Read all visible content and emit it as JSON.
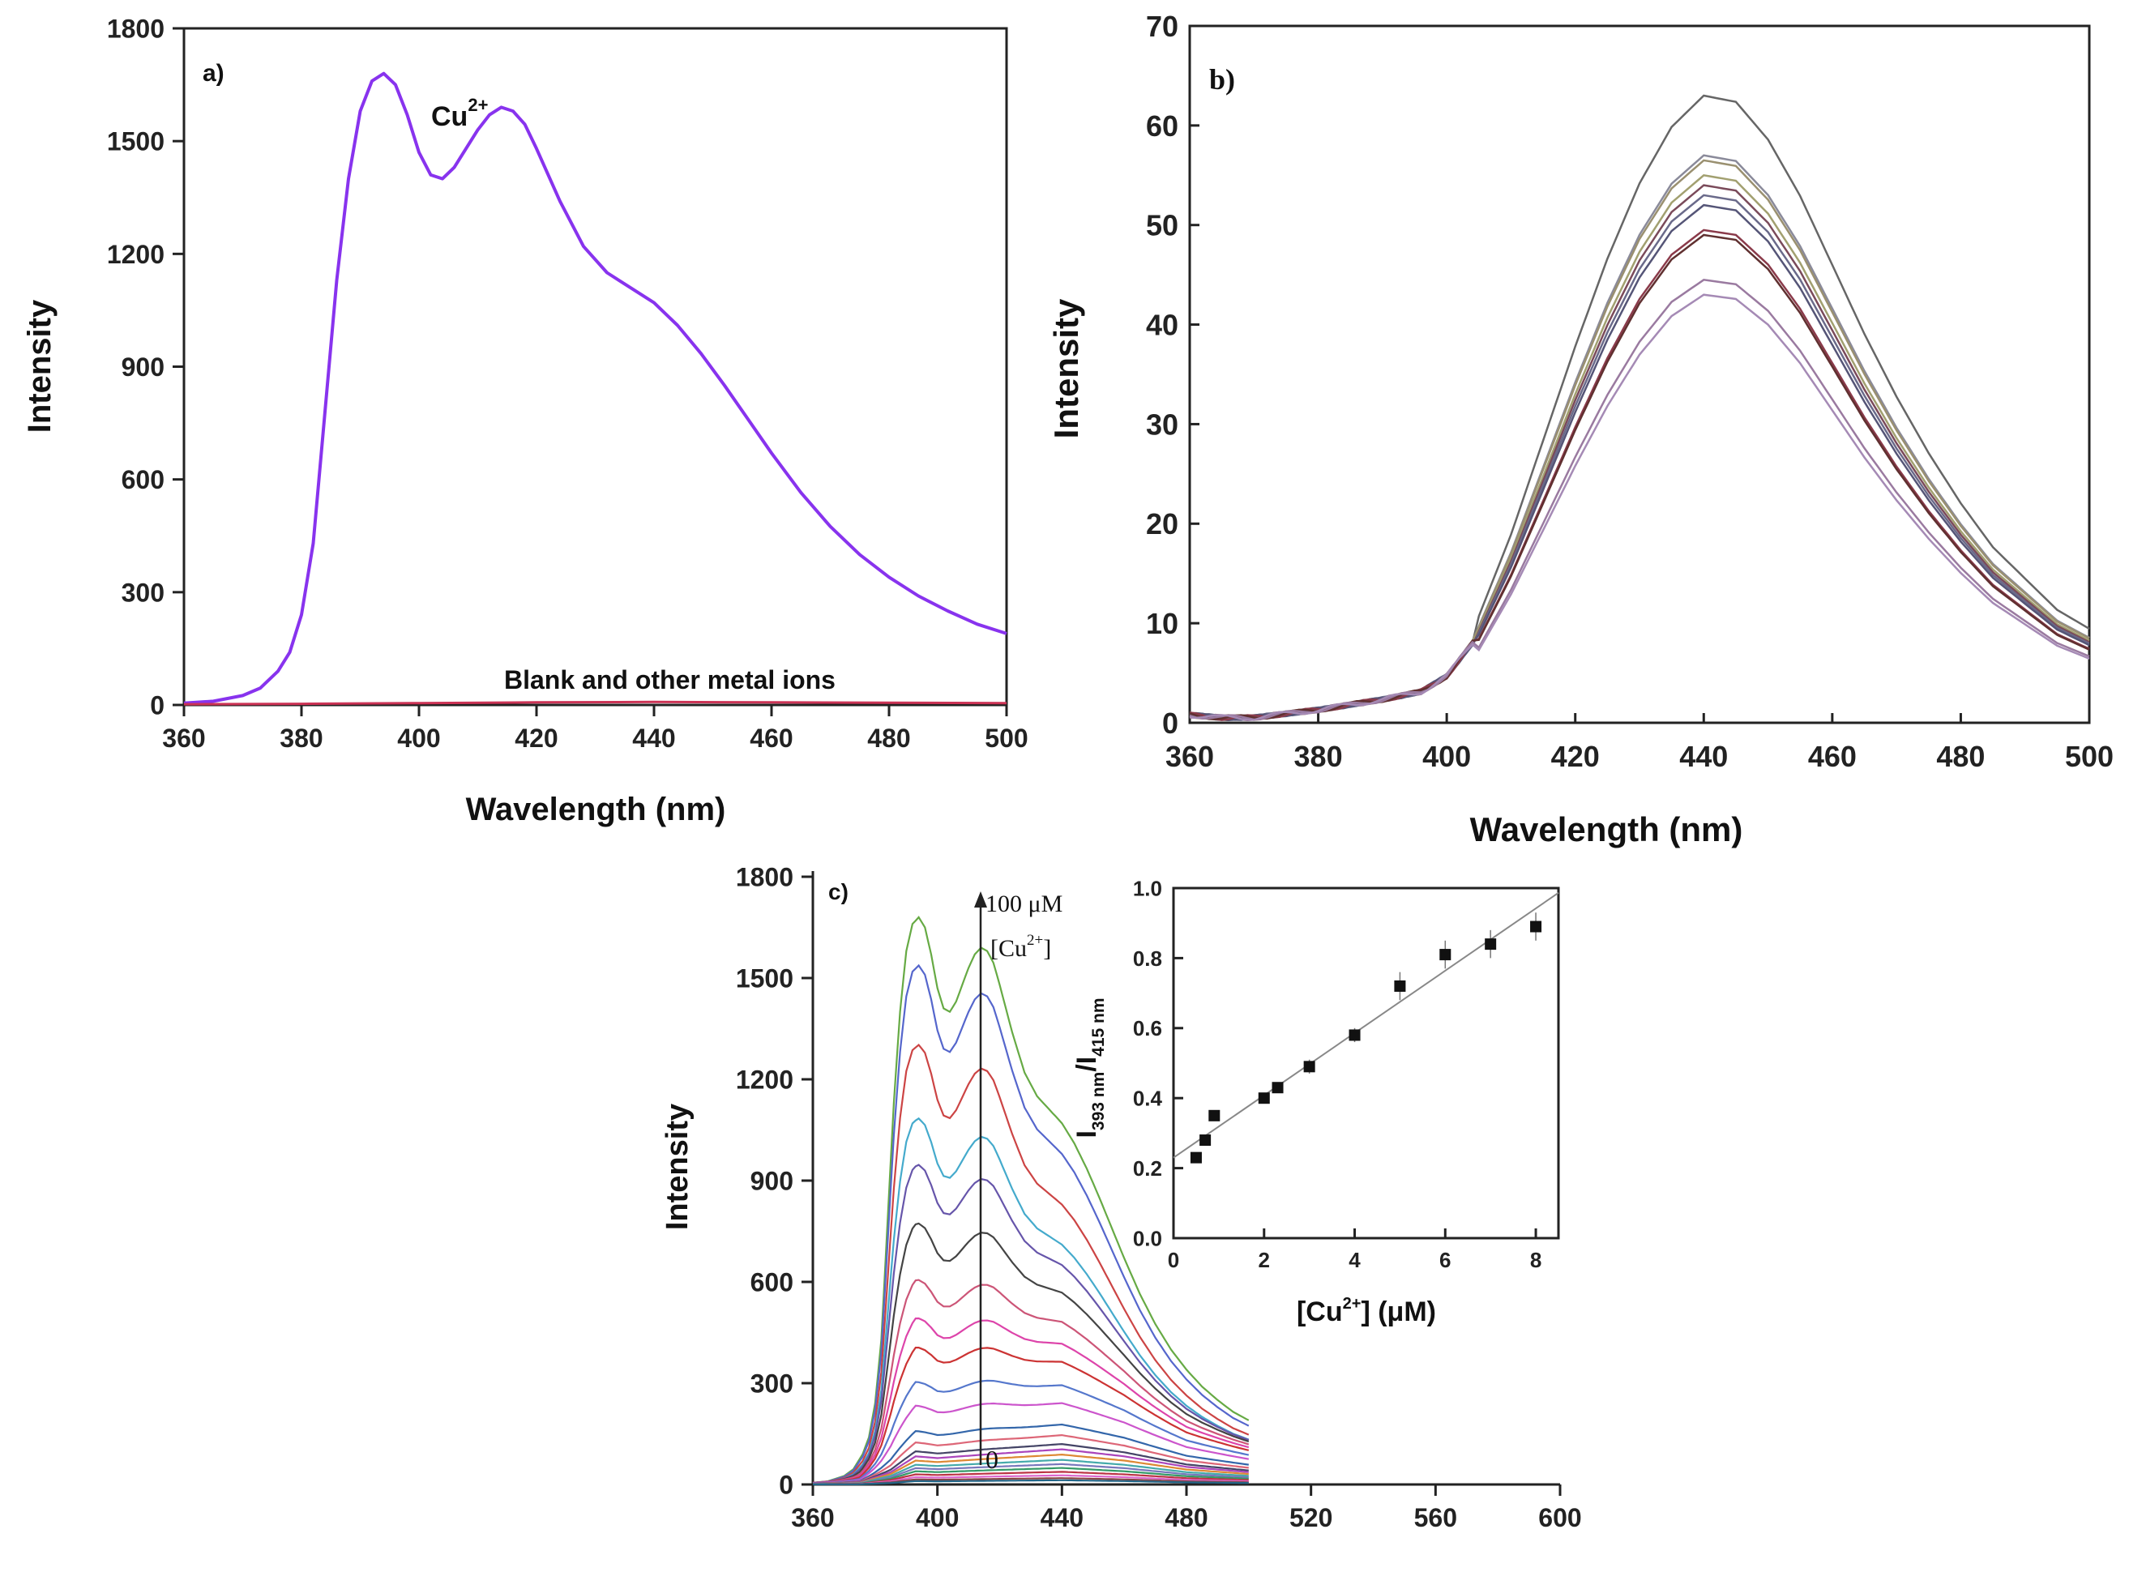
{
  "chart_data": [
    {
      "id": "a",
      "type": "line",
      "panel_label": "a)",
      "xlabel": "Wavelength (nm)",
      "ylabel": "Intensity",
      "xlim": [
        360,
        500
      ],
      "ylim": [
        0,
        1800
      ],
      "xticks": [
        360,
        380,
        400,
        420,
        440,
        460,
        480,
        500
      ],
      "yticks": [
        0,
        300,
        600,
        900,
        1200,
        1500,
        1800
      ],
      "annotations": {
        "cu_base": "Cu",
        "cu_sup": "2+",
        "blank": "Blank and other metal ions"
      },
      "colors": {
        "cu": "#8833ee",
        "blank": "#cc3355"
      },
      "series": [
        {
          "name": "Cu2+",
          "x": [
            360,
            365,
            370,
            373,
            376,
            378,
            380,
            382,
            384,
            386,
            388,
            390,
            392,
            394,
            396,
            398,
            400,
            402,
            404,
            406,
            408,
            410,
            412,
            414,
            416,
            418,
            420,
            424,
            428,
            432,
            436,
            440,
            444,
            448,
            452,
            456,
            460,
            465,
            470,
            475,
            480,
            485,
            490,
            495,
            500
          ],
          "y": [
            5,
            10,
            25,
            45,
            90,
            140,
            240,
            430,
            780,
            1130,
            1400,
            1580,
            1660,
            1680,
            1650,
            1570,
            1470,
            1410,
            1400,
            1430,
            1480,
            1530,
            1570,
            1590,
            1580,
            1545,
            1480,
            1340,
            1220,
            1150,
            1110,
            1070,
            1010,
            935,
            850,
            760,
            670,
            565,
            475,
            400,
            340,
            290,
            250,
            215,
            190
          ]
        },
        {
          "name": "Blank and other metal ions",
          "x": [
            360,
            380,
            400,
            420,
            440,
            460,
            480,
            500
          ],
          "y": [
            2,
            3,
            5,
            7,
            8,
            7,
            6,
            5
          ]
        }
      ]
    },
    {
      "id": "b",
      "type": "line",
      "panel_label": "b)",
      "xlabel": "Wavelength (nm)",
      "ylabel": "Intensity",
      "xlim": [
        360,
        500
      ],
      "ylim": [
        0,
        70
      ],
      "xticks": [
        360,
        380,
        400,
        420,
        440,
        460,
        480,
        500
      ],
      "yticks": [
        0,
        10,
        20,
        30,
        40,
        50,
        60,
        70
      ],
      "colors": [
        "#666666",
        "#8a8a9a",
        "#9a9070",
        "#a2a070",
        "#7a4a5a",
        "#6a6a8a",
        "#555577",
        "#8a3a4a",
        "#603030",
        "#9a7aa0",
        "#a58ab5"
      ],
      "peaks": [
        63,
        57,
        56.5,
        55,
        54,
        53,
        52,
        49.5,
        49,
        44.5,
        43
      ]
    },
    {
      "id": "c",
      "type": "line",
      "panel_label": "c)",
      "ylabel": "Intensity",
      "xlim": [
        360,
        600
      ],
      "ylim": [
        0,
        1800
      ],
      "xticks": [
        360,
        400,
        440,
        480,
        520,
        560,
        600
      ],
      "yticks": [
        0,
        300,
        600,
        900,
        1200,
        1500,
        1800
      ],
      "arrow_label_top": "100 μM",
      "arrow_label_bracket": "[Cu",
      "arrow_label_sup": "2+",
      "arrow_label_close": "]",
      "arrow_label_zero": "0",
      "curve_colors": [
        "#66aa44",
        "#5566cc",
        "#cc4444",
        "#44aacc",
        "#6655aa",
        "#444444",
        "#cc5577",
        "#dd44aa",
        "#cc3333",
        "#5577cc",
        "#cc55cc",
        "#3366aa",
        "#dd6677",
        "#444466",
        "#aa44bb",
        "#dd8833",
        "#44aaaa",
        "#7777bb",
        "#339966",
        "#bb3344",
        "#dd66cc",
        "#884444",
        "#226688"
      ],
      "curve_scales": [
        1.0,
        0.915,
        0.775,
        0.665,
        0.61,
        0.535,
        0.455,
        0.395,
        0.345,
        0.28,
        0.23,
        0.17,
        0.14,
        0.115,
        0.1,
        0.085,
        0.07,
        0.058,
        0.047,
        0.036,
        0.026,
        0.018,
        0.012
      ]
    },
    {
      "id": "c-inset",
      "type": "scatter",
      "xlabel_bracket": "[Cu",
      "xlabel_sup": "2+",
      "xlabel_unit": "] (μM)",
      "ylabel_I1": "I",
      "ylabel_sub1": "393 nm",
      "ylabel_slash": "/I",
      "ylabel_sub2": "415 nm",
      "xlim": [
        0,
        8.5
      ],
      "ylim": [
        0,
        1.0
      ],
      "xticks": [
        0,
        2,
        4,
        6,
        8
      ],
      "yticks": [
        0.0,
        0.2,
        0.4,
        0.6,
        0.8,
        1.0
      ],
      "x": [
        0.5,
        0.7,
        0.9,
        2.0,
        2.3,
        3.0,
        4.0,
        5.0,
        6.0,
        7.0,
        8.0
      ],
      "y": [
        0.23,
        0.28,
        0.35,
        0.4,
        0.43,
        0.49,
        0.58,
        0.72,
        0.81,
        0.84,
        0.89
      ],
      "errors": [
        0.01,
        0.01,
        0.015,
        0.015,
        0.015,
        0.02,
        0.02,
        0.04,
        0.04,
        0.04,
        0.04
      ],
      "fit": {
        "intercept": 0.23,
        "slope": 0.089,
        "x_end": 8.5
      }
    }
  ]
}
